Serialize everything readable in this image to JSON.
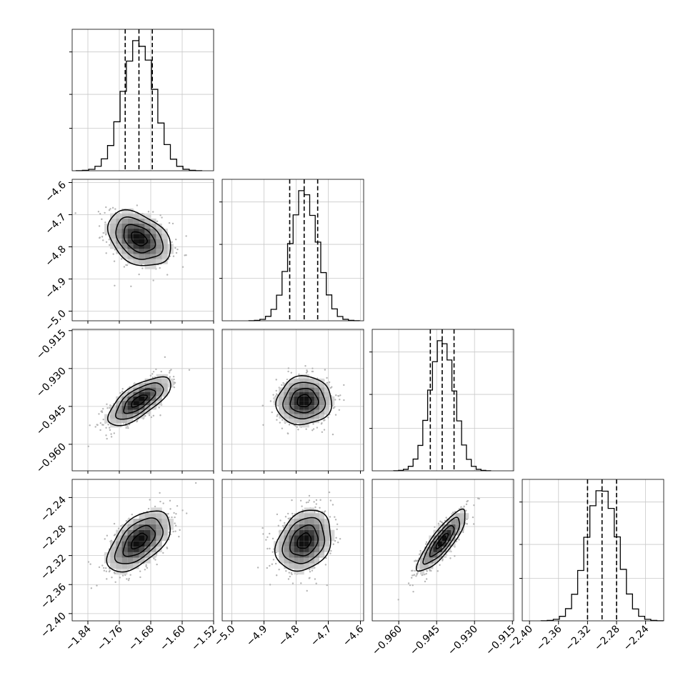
{
  "chart_data": {
    "type": "corner",
    "parameters": [
      {
        "range": [
          -1.88,
          -1.52
        ],
        "ticks": [
          -1.84,
          -1.76,
          -1.68,
          -1.6,
          -1.52
        ],
        "tick_labels": [
          "−1.84",
          "−1.76",
          "−1.68",
          "−1.60",
          "−1.52"
        ],
        "quantiles": [
          -1.745,
          -1.71,
          -1.676
        ],
        "mean": -1.71,
        "sd": 0.04
      },
      {
        "range": [
          -5.03,
          -4.59
        ],
        "ticks": [
          -5.0,
          -4.9,
          -4.8,
          -4.7,
          -4.6
        ],
        "tick_labels": [
          "−5.0",
          "−4.9",
          "−4.8",
          "−4.7",
          "−4.6"
        ],
        "quantiles": [
          -4.82,
          -4.775,
          -4.733
        ],
        "mean": -4.775,
        "sd": 0.043
      },
      {
        "range": [
          -0.9705,
          -0.9145
        ],
        "ticks": [
          -0.96,
          -0.945,
          -0.93,
          -0.915
        ],
        "tick_labels": [
          "−0.960",
          "−0.945",
          "−0.930",
          "−0.915"
        ],
        "quantiles": [
          -0.9475,
          -0.9428,
          -0.9381
        ],
        "mean": -0.9428,
        "sd": 0.0048
      },
      {
        "range": [
          -2.41,
          -2.215
        ],
        "ticks": [
          -2.4,
          -2.36,
          -2.32,
          -2.28,
          -2.24
        ],
        "tick_labels": [
          "−2.40",
          "−2.36",
          "−2.32",
          "−2.28",
          "−2.24"
        ],
        "quantiles": [
          -2.32,
          -2.3,
          -2.28
        ],
        "mean": -2.3,
        "sd": 0.021
      }
    ],
    "correlations": [
      {
        "pair": [
          0,
          1
        ],
        "r": -0.35
      },
      {
        "pair": [
          0,
          2
        ],
        "r": 0.7
      },
      {
        "pair": [
          0,
          3
        ],
        "r": 0.55
      },
      {
        "pair": [
          1,
          2
        ],
        "r": 0.05
      },
      {
        "pair": [
          1,
          3
        ],
        "r": 0.25
      },
      {
        "pair": [
          2,
          3
        ],
        "r": 0.85
      }
    ],
    "histogram_bins": 20,
    "contour_levels": [
      "0.5 sigma",
      "1 sigma",
      "1.5 sigma",
      "2 sigma"
    ],
    "grid": true
  }
}
